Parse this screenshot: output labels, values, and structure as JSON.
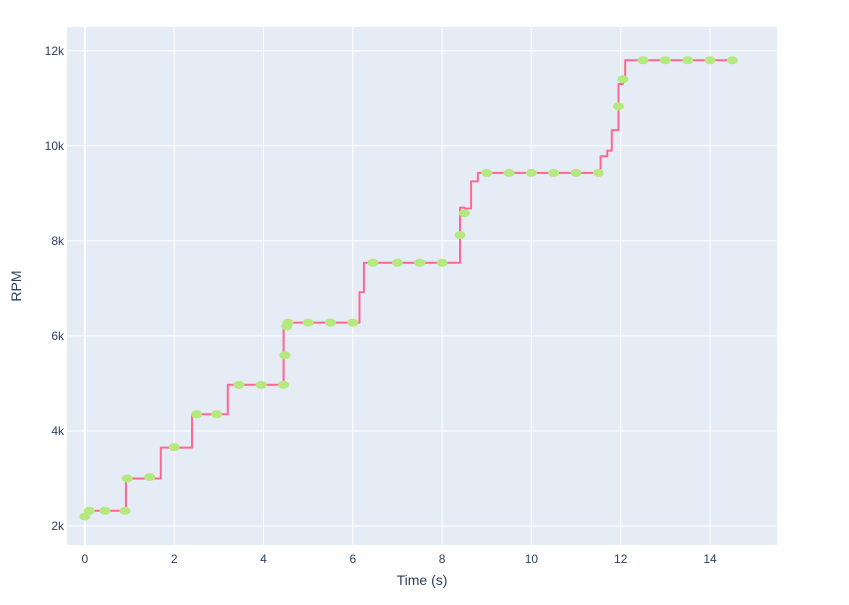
{
  "chart_data": {
    "type": "line",
    "title": "",
    "xlabel": "Time (s)",
    "ylabel": "RPM",
    "xlim": [
      -0.4,
      15.5
    ],
    "ylim": [
      1600,
      12500
    ],
    "x_ticks": [
      0,
      2,
      4,
      6,
      8,
      10,
      12,
      14
    ],
    "x_tick_labels": [
      "0",
      "2",
      "4",
      "6",
      "8",
      "10",
      "12",
      "14"
    ],
    "y_ticks": [
      2000,
      4000,
      6000,
      8000,
      10000,
      12000
    ],
    "y_tick_labels": [
      "2k",
      "4k",
      "6k",
      "8k",
      "10k",
      "12k"
    ],
    "grid": true,
    "legend": "none",
    "colors": {
      "line": "#ff6692",
      "markers": "#b6e880",
      "plot_bg": "#e5ecf6",
      "grid": "#ffffff",
      "text": "#2a3f5f"
    },
    "series": [
      {
        "type": "line",
        "shape": "step",
        "x": [
          0.0,
          0.05,
          0.05,
          0.92,
          0.92,
          1.7,
          1.7,
          2.4,
          2.4,
          3.2,
          3.2,
          4.45,
          4.45,
          4.5,
          4.5,
          6.15,
          6.15,
          6.25,
          6.25,
          8.4,
          8.4,
          8.5,
          8.5,
          8.65,
          8.65,
          8.8,
          8.8,
          11.55,
          11.55,
          11.7,
          11.7,
          11.8,
          11.8,
          11.95,
          11.95,
          12.05,
          12.05,
          12.1,
          12.1,
          14.55
        ],
        "y": [
          2200,
          2200,
          2320,
          2320,
          3000,
          3000,
          3650,
          3650,
          4350,
          4350,
          4970,
          4970,
          6200,
          6200,
          6280,
          6280,
          6920,
          6920,
          7540,
          7540,
          8700,
          8700,
          8680,
          8680,
          9250,
          9250,
          9430,
          9430,
          9780,
          9780,
          9900,
          9900,
          10330,
          10330,
          11300,
          11300,
          11350,
          11350,
          11800,
          11800
        ]
      },
      {
        "type": "markers",
        "x": [
          0.0,
          0.1,
          0.45,
          0.9,
          0.95,
          1.45,
          2.0,
          2.5,
          2.95,
          3.45,
          3.95,
          4.45,
          4.48,
          4.52,
          4.55,
          5.0,
          5.5,
          6.0,
          6.45,
          7.0,
          7.5,
          8.0,
          8.4,
          8.5,
          9.0,
          9.5,
          10.0,
          10.5,
          11.0,
          11.5,
          11.95,
          12.05,
          12.5,
          13.0,
          13.5,
          14.0,
          14.5
        ],
        "y": [
          2200,
          2320,
          2320,
          2320,
          3000,
          3030,
          3660,
          4350,
          4350,
          4970,
          4970,
          4970,
          5590,
          6200,
          6280,
          6280,
          6280,
          6280,
          7540,
          7540,
          7540,
          7540,
          8120,
          8580,
          9430,
          9430,
          9430,
          9430,
          9430,
          9430,
          10830,
          11400,
          11800,
          11800,
          11800,
          11800,
          11800
        ]
      }
    ]
  }
}
